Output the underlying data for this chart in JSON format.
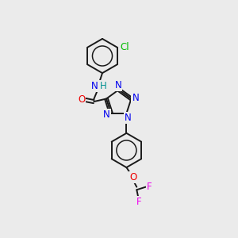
{
  "background_color": "#ebebeb",
  "bond_color": "#1a1a1a",
  "bond_width": 1.4,
  "atom_colors": {
    "N": "#0000ee",
    "O": "#ee0000",
    "Cl": "#00bb00",
    "F": "#ee00ee",
    "H": "#009090",
    "C": "#1a1a1a"
  },
  "font_size": 8.5,
  "fig_width": 3.0,
  "fig_height": 3.0,
  "dpi": 100
}
